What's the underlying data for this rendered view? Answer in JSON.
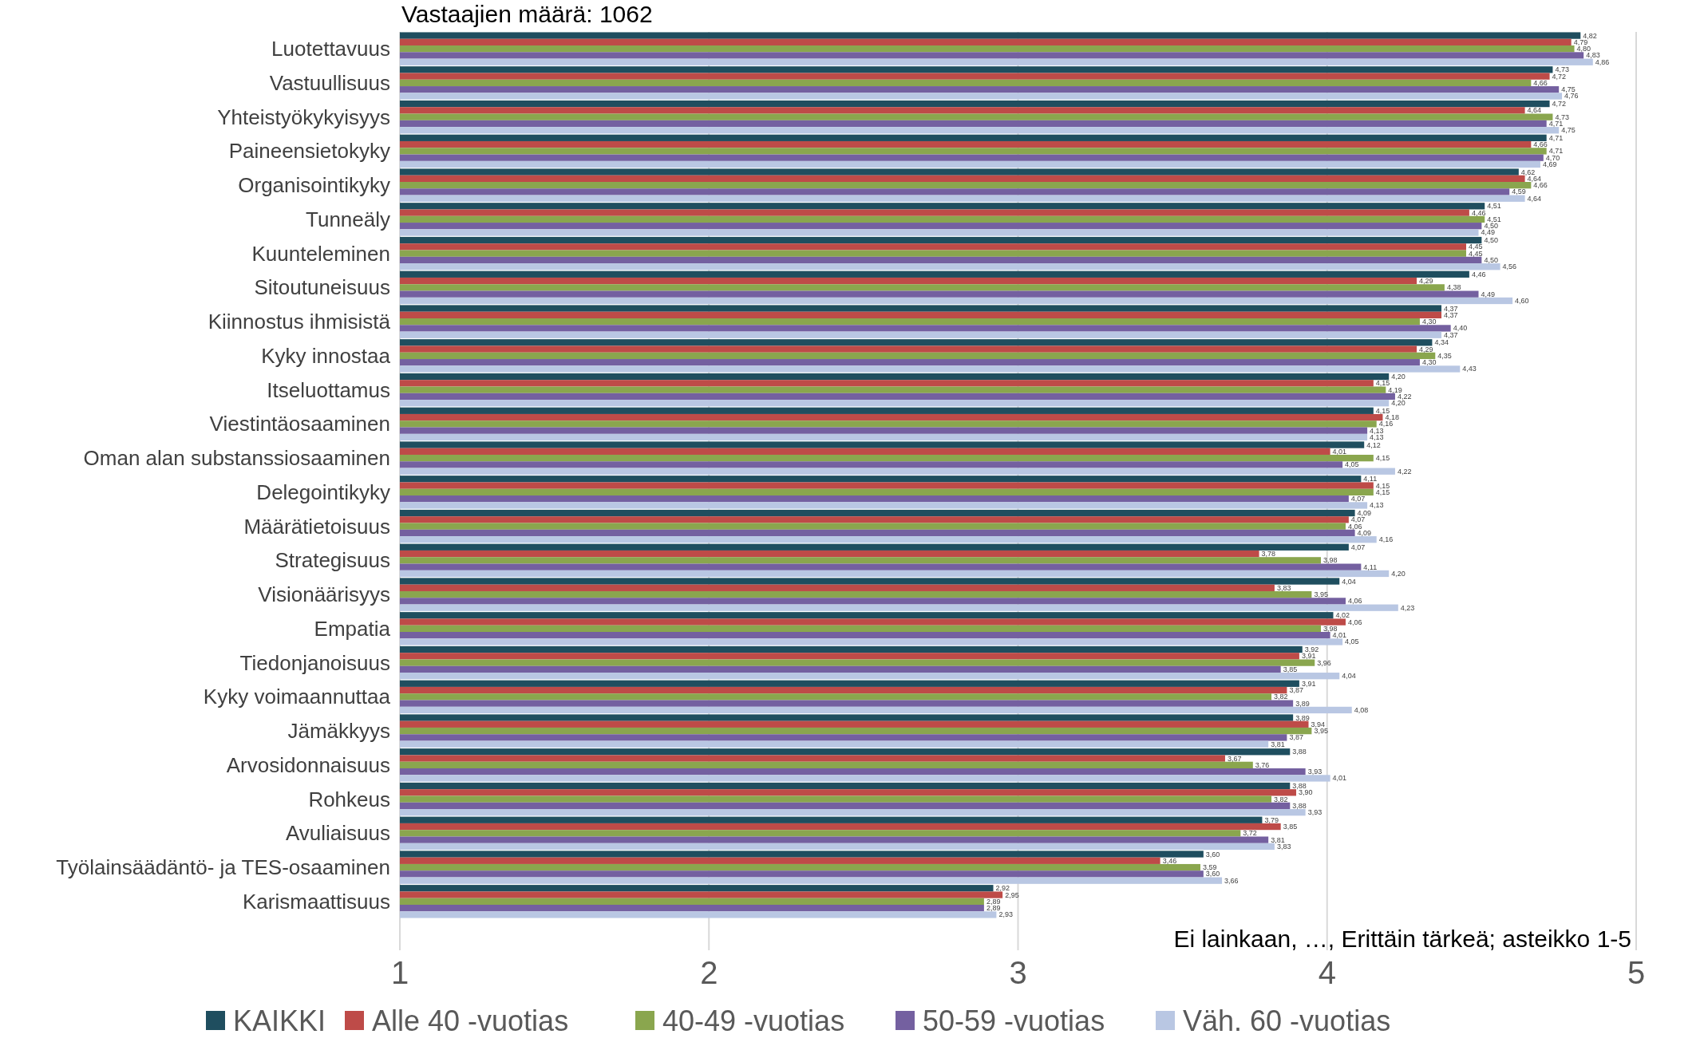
{
  "chart_data": {
    "type": "bar",
    "orientation": "horizontal",
    "subtitle": "Vastaajien määrä: 1062",
    "categories": [
      "Luotettavuus",
      "Vastuullisuus",
      "Yhteistyökykyisyys",
      "Paineensietokyky",
      "Organisointikyky",
      "Tunneäly",
      "Kuunteleminen",
      "Sitoutuneisuus",
      "Kiinnostus ihmisistä",
      "Kyky innostaa",
      "Itseluottamus",
      "Viestintäosaaminen",
      "Oman alan substanssiosaaminen",
      "Delegointikyky",
      "Määrätietoisuus",
      "Strategisuus",
      "Visionäärisyys",
      "Empatia",
      "Tiedonjanoisuus",
      "Kyky voimaannuttaa",
      "Jämäkkyys",
      "Arvosidonnaisuus",
      "Rohkeus",
      "Avuliaisuus",
      "Työlainsäädäntö- ja TES-osaaminen",
      "Karismaattisuus"
    ],
    "series": [
      {
        "name": "KAIKKI",
        "color": "#1f4e5f",
        "values": [
          4.82,
          4.73,
          4.72,
          4.71,
          4.62,
          4.51,
          4.5,
          4.46,
          4.37,
          4.34,
          4.2,
          4.15,
          4.12,
          4.11,
          4.09,
          4.07,
          4.04,
          4.02,
          3.92,
          3.91,
          3.89,
          3.88,
          3.88,
          3.79,
          3.6,
          2.92
        ],
        "value_labels": [
          "4,82",
          "4,73",
          "4,72",
          "4,71",
          "4,62",
          "4,51",
          "4,50",
          "4,46",
          "4,37",
          "4,34",
          "4,20",
          "4,15",
          "4,12",
          "4,11",
          "4,09",
          "4,07",
          "4,04",
          "4,02",
          "3,92",
          "3,91",
          "3,89",
          "3,88",
          "3,88",
          "3,79",
          "3,60",
          "2,92"
        ]
      },
      {
        "name": "Alle 40 -vuotias",
        "color": "#be4b48",
        "values": [
          4.79,
          4.72,
          4.64,
          4.66,
          4.64,
          4.46,
          4.45,
          4.29,
          4.37,
          4.29,
          4.15,
          4.18,
          4.01,
          4.15,
          4.07,
          3.78,
          3.83,
          4.06,
          3.91,
          3.87,
          3.94,
          3.67,
          3.9,
          3.85,
          3.46,
          2.95
        ],
        "value_labels": [
          "4,79",
          "4,72",
          "4,64",
          "4,66",
          "4,64",
          "4,46",
          "4,45",
          "4,29",
          "4,37",
          "4,29",
          "4,15",
          "4,18",
          "4,01",
          "4,15",
          "4,07",
          "3,78",
          "3,83",
          "4,06",
          "3,91",
          "3,87",
          "3,94",
          "3,67",
          "3,90",
          "3,85",
          "3,46",
          "2,95"
        ]
      },
      {
        "name": "40-49 -vuotias",
        "color": "#8aa64e",
        "values": [
          4.8,
          4.66,
          4.73,
          4.71,
          4.66,
          4.51,
          4.45,
          4.38,
          4.3,
          4.35,
          4.19,
          4.16,
          4.15,
          4.15,
          4.06,
          3.98,
          3.95,
          3.98,
          3.96,
          3.82,
          3.95,
          3.76,
          3.82,
          3.72,
          3.59,
          2.89
        ],
        "value_labels": [
          "4,80",
          "4,66",
          "4,73",
          "4,71",
          "4,66",
          "4,51",
          "4,45",
          "4,38",
          "4,30",
          "4,35",
          "4,19",
          "4,16",
          "4,15",
          "4,15",
          "4,06",
          "3,98",
          "3,95",
          "3,98",
          "3,96",
          "3,82",
          "3,95",
          "3,76",
          "3,82",
          "3,72",
          "3,59",
          "2,89"
        ]
      },
      {
        "name": "50-59 -vuotias",
        "color": "#7460a0",
        "values": [
          4.83,
          4.75,
          4.71,
          4.7,
          4.59,
          4.5,
          4.5,
          4.49,
          4.4,
          4.3,
          4.22,
          4.13,
          4.05,
          4.07,
          4.09,
          4.11,
          4.06,
          4.01,
          3.85,
          3.89,
          3.87,
          3.93,
          3.88,
          3.81,
          3.6,
          2.89
        ],
        "value_labels": [
          "4,83",
          "4,75",
          "4,71",
          "4,70",
          "4,59",
          "4,50",
          "4,50",
          "4,49",
          "4,40",
          "4,30",
          "4,22",
          "4,13",
          "4,05",
          "4,07",
          "4,09",
          "4,11",
          "4,06",
          "4,01",
          "3,85",
          "3,89",
          "3,87",
          "3,93",
          "3,88",
          "3,81",
          "3,60",
          "2,89"
        ]
      },
      {
        "name": "Väh. 60 -vuotias",
        "color": "#b9c7e3",
        "values": [
          4.86,
          4.76,
          4.75,
          4.69,
          4.64,
          4.49,
          4.56,
          4.6,
          4.37,
          4.43,
          4.2,
          4.13,
          4.22,
          4.13,
          4.16,
          4.2,
          4.23,
          4.05,
          4.04,
          4.08,
          3.81,
          4.01,
          3.93,
          3.83,
          3.66,
          2.93
        ],
        "value_labels": [
          "4,86",
          "4,76",
          "4,75",
          "4,69",
          "4,64",
          "4,49",
          "4,56",
          "4,60",
          "4,37",
          "4,43",
          "4,20",
          "4,13",
          "4,22",
          "4,13",
          "4,16",
          "4,20",
          "4,23",
          "4,05",
          "4,04",
          "4,08",
          "3,81",
          "4,01",
          "3,93",
          "3,83",
          "3,66",
          "2,93"
        ]
      }
    ],
    "xlim": [
      1,
      5
    ],
    "xticks": [
      1,
      2,
      3,
      4,
      5
    ],
    "grid": "x",
    "legend": "bottom",
    "annotations": [
      "Ei lainkaan, …, Erittäin tärkeä; asteikko 1-5"
    ]
  }
}
